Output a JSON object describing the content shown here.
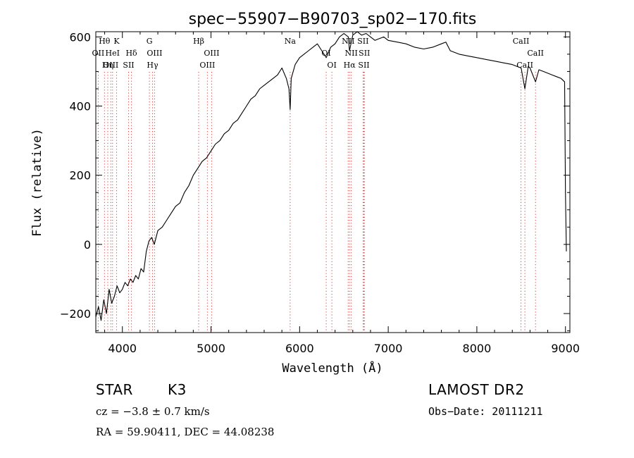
{
  "chart_data": {
    "type": "line",
    "title": "spec−55907−B90703_sp02−170.fits",
    "xlabel": "Wavelength (Å)",
    "ylabel": "Flux (relative)",
    "xlim": [
      3700,
      9050
    ],
    "ylim": [
      -255,
      615
    ],
    "x_ticks": [
      4000,
      5000,
      6000,
      7000,
      8000,
      9000
    ],
    "y_ticks": [
      -200,
      0,
      200,
      400,
      600
    ],
    "x_tick_labels": [
      "4000",
      "5000",
      "6000",
      "7000",
      "8000",
      "9000"
    ],
    "y_tick_labels": [
      "−200",
      "0",
      "200",
      "400",
      "600"
    ],
    "grid": false,
    "series": [
      {
        "name": "flux",
        "x": [
          3700,
          3730,
          3760,
          3790,
          3820,
          3850,
          3880,
          3910,
          3940,
          3970,
          4000,
          4030,
          4060,
          4090,
          4120,
          4150,
          4180,
          4210,
          4240,
          4270,
          4300,
          4330,
          4360,
          4400,
          4450,
          4500,
          4550,
          4600,
          4650,
          4700,
          4750,
          4800,
          4850,
          4900,
          4950,
          5000,
          5050,
          5100,
          5150,
          5200,
          5250,
          5300,
          5350,
          5400,
          5450,
          5500,
          5550,
          5600,
          5650,
          5700,
          5750,
          5800,
          5850,
          5880,
          5893,
          5905,
          5950,
          6000,
          6050,
          6100,
          6150,
          6200,
          6250,
          6300,
          6350,
          6400,
          6450,
          6500,
          6550,
          6563,
          6600,
          6650,
          6700,
          6750,
          6800,
          6850,
          6900,
          6950,
          7000,
          7100,
          7200,
          7300,
          7400,
          7500,
          7600,
          7650,
          7700,
          7800,
          7900,
          8000,
          8100,
          8200,
          8300,
          8400,
          8450,
          8500,
          8542,
          8580,
          8600,
          8662,
          8700,
          8750,
          8800,
          8850,
          8900,
          8950,
          8990,
          9000,
          9010
        ],
        "values": [
          -210,
          -180,
          -220,
          -160,
          -200,
          -130,
          -170,
          -150,
          -120,
          -140,
          -130,
          -110,
          -120,
          -100,
          -110,
          -90,
          -100,
          -70,
          -80,
          -20,
          10,
          20,
          0,
          40,
          50,
          70,
          90,
          110,
          120,
          150,
          170,
          200,
          220,
          240,
          250,
          270,
          290,
          300,
          320,
          330,
          350,
          360,
          380,
          400,
          420,
          430,
          450,
          460,
          470,
          480,
          490,
          510,
          480,
          450,
          390,
          480,
          520,
          540,
          550,
          560,
          570,
          580,
          560,
          540,
          570,
          580,
          600,
          610,
          600,
          560,
          605,
          615,
          605,
          610,
          600,
          590,
          595,
          600,
          590,
          585,
          580,
          570,
          565,
          570,
          580,
          585,
          560,
          550,
          545,
          540,
          535,
          530,
          525,
          520,
          515,
          510,
          450,
          515,
          510,
          470,
          505,
          500,
          495,
          490,
          485,
          480,
          470,
          150,
          -20
        ]
      }
    ],
    "line_markers": [
      {
        "label": "Hθ",
        "wavelength": 3798,
        "row": 0
      },
      {
        "label": "K",
        "wavelength": 3934,
        "row": 0
      },
      {
        "label": "OII",
        "wavelength": 3727,
        "row": 1
      },
      {
        "label": "HeI",
        "wavelength": 3889,
        "row": 1
      },
      {
        "label": "Hδ",
        "wavelength": 4102,
        "row": 1
      },
      {
        "label": "OIII",
        "wavelength": 3869,
        "row": 2
      },
      {
        "label": "Hη",
        "wavelength": 3835,
        "row": 2
      },
      {
        "label": "SII",
        "wavelength": 4070,
        "row": 2
      },
      {
        "label": "G",
        "wavelength": 4305,
        "row": 0
      },
      {
        "label": "OIII",
        "wavelength": 4363,
        "row": 1
      },
      {
        "label": "Hγ",
        "wavelength": 4340,
        "row": 2
      },
      {
        "label": "Hβ",
        "wavelength": 4861,
        "row": 0
      },
      {
        "label": "OIII",
        "wavelength": 5007,
        "row": 1
      },
      {
        "label": "OIII",
        "wavelength": 4959,
        "row": 2
      },
      {
        "label": "Na",
        "wavelength": 5893,
        "row": 0
      },
      {
        "label": "OI",
        "wavelength": 6300,
        "row": 1
      },
      {
        "label": "OI",
        "wavelength": 6364,
        "row": 2
      },
      {
        "label": "NII",
        "wavelength": 6548,
        "row": 0
      },
      {
        "label": "NII",
        "wavelength": 6583,
        "row": 1
      },
      {
        "label": "Hα",
        "wavelength": 6563,
        "row": 2
      },
      {
        "label": "SII",
        "wavelength": 6716,
        "row": 0
      },
      {
        "label": "SII",
        "wavelength": 6731,
        "row": 1
      },
      {
        "label": "SII",
        "wavelength": 6725,
        "row": 2
      },
      {
        "label": "CaII",
        "wavelength": 8498,
        "row": 0
      },
      {
        "label": "CaII",
        "wavelength": 8662,
        "row": 1
      },
      {
        "label": "CaII",
        "wavelength": 8542,
        "row": 2
      }
    ]
  },
  "info": {
    "object_class": "STAR",
    "subclass": "K3",
    "survey": "LAMOST DR2",
    "cz_line": "cz = −3.8 ± 0.7 km/s",
    "obs_date": "Obs−Date: 20111211",
    "coords_line": "RA =  59.90411, DEC =  44.08238"
  }
}
